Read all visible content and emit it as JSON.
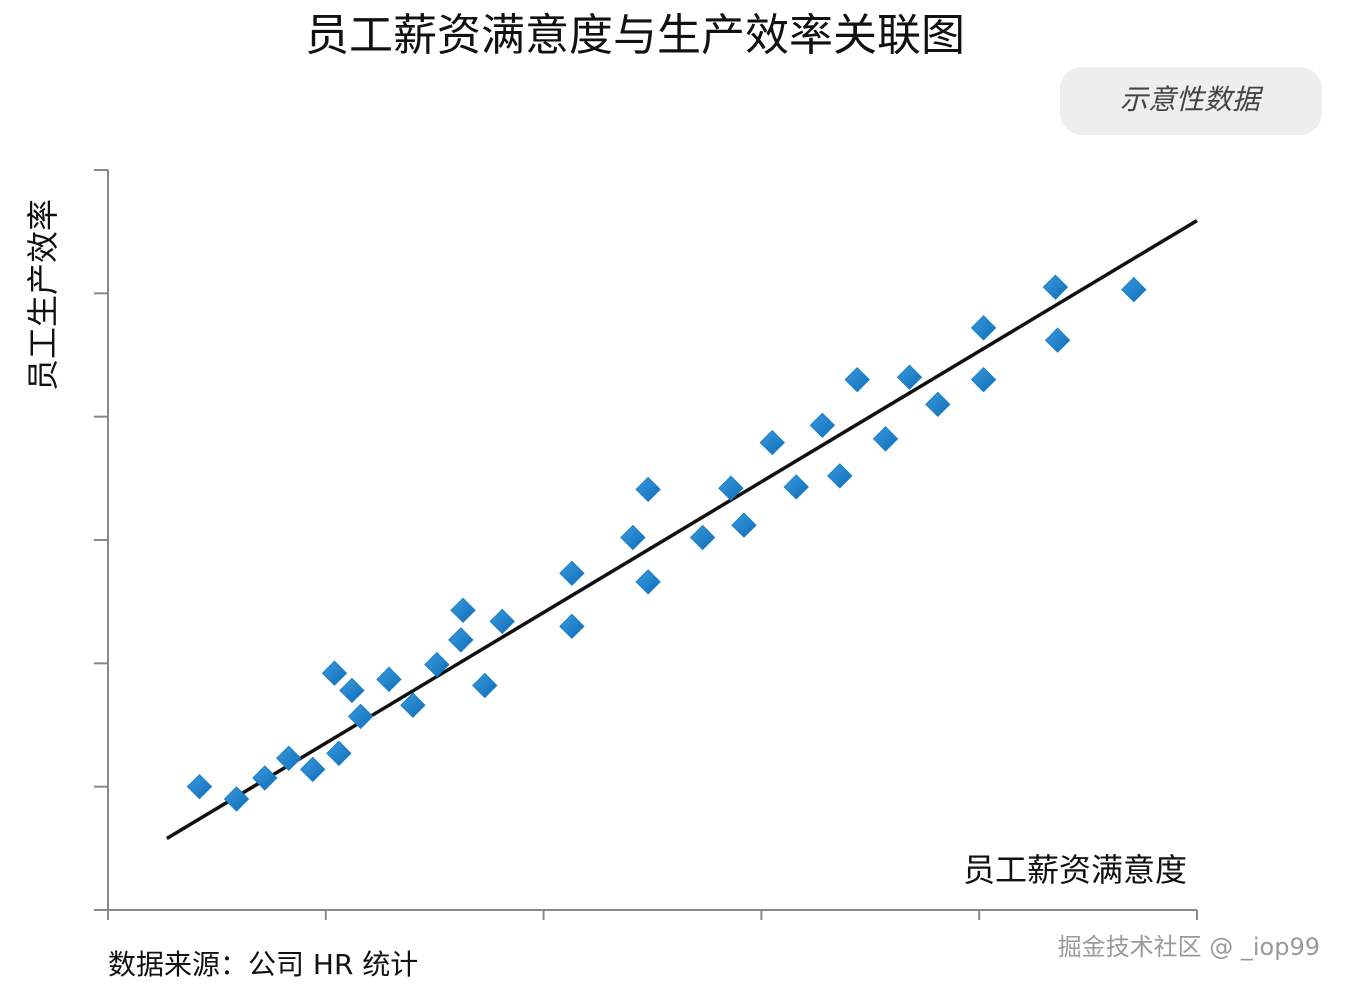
{
  "chart_data": {
    "type": "scatter",
    "title": "员工薪资满意度与生产效率关联图",
    "badge": "示意性数据",
    "x_label": "员工薪资满意度",
    "y_label": "员工生产效率",
    "source": "数据来源：公司 HR 统计",
    "watermark": "掘金技术社区 @ _iop99",
    "xlim": [
      0,
      5
    ],
    "ylim": [
      0,
      6
    ],
    "xticks": [
      0,
      1,
      2,
      3,
      4,
      5
    ],
    "yticks": [
      0,
      1,
      2,
      3,
      4,
      5,
      6
    ],
    "show_tick_labels": false,
    "grid": false,
    "color": "#1a7fc8",
    "x": [
      0.42,
      0.59,
      0.72,
      0.83,
      0.94,
      1.04,
      1.06,
      1.12,
      1.16,
      1.29,
      1.4,
      1.51,
      1.62,
      1.63,
      1.73,
      1.81,
      2.13,
      2.13,
      2.41,
      2.48,
      2.48,
      2.73,
      2.86,
      2.92,
      3.05,
      3.16,
      3.28,
      3.36,
      3.44,
      3.57,
      3.68,
      3.81,
      4.02,
      4.02,
      4.35,
      4.36,
      4.71
    ],
    "values": [
      1.0,
      0.9,
      1.07,
      1.23,
      1.14,
      1.92,
      1.27,
      1.78,
      1.57,
      1.87,
      1.66,
      1.99,
      2.19,
      2.43,
      1.82,
      2.34,
      2.73,
      2.3,
      3.02,
      3.41,
      2.66,
      3.02,
      3.42,
      3.12,
      3.79,
      3.43,
      3.93,
      3.52,
      4.3,
      3.82,
      4.32,
      4.1,
      4.72,
      4.3,
      5.05,
      4.62,
      5.03
    ],
    "trend": {
      "x": [
        0.27,
        5.0
      ],
      "values": [
        0.58,
        5.59
      ],
      "color": "#111111"
    }
  }
}
